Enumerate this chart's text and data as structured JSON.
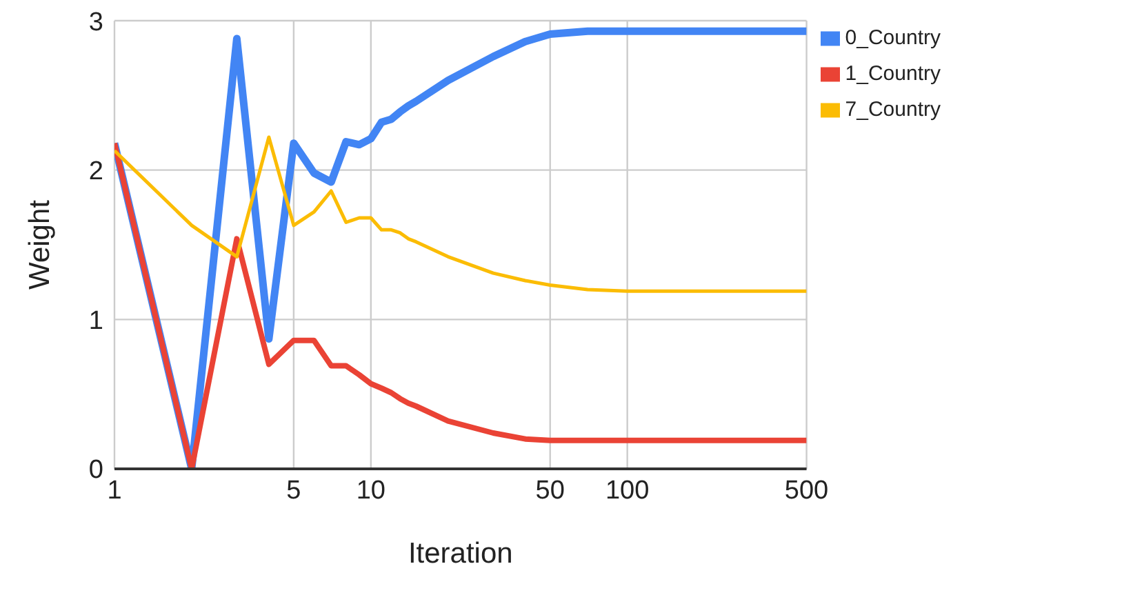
{
  "chart_data": {
    "type": "line",
    "xlabel": "Iteration",
    "ylabel": "Weight",
    "log": "x",
    "x": [
      1,
      2,
      3,
      4,
      5,
      6,
      7,
      8,
      9,
      10,
      11,
      12,
      13,
      14,
      15,
      20,
      30,
      40,
      50,
      70,
      100,
      500
    ],
    "series": [
      {
        "name": "0_Country",
        "color": "#4285f4",
        "values": [
          2.18,
          0,
          2.88,
          0.87,
          2.18,
          1.98,
          1.92,
          2.19,
          2.17,
          2.21,
          2.32,
          2.34,
          2.39,
          2.43,
          2.46,
          2.6,
          2.76,
          2.86,
          2.91,
          2.93,
          2.93,
          2.93
        ]
      },
      {
        "name": "1_Country",
        "color": "#ea4335",
        "values": [
          2.18,
          0,
          1.54,
          0.7,
          0.86,
          0.86,
          0.69,
          0.69,
          0.63,
          0.57,
          0.54,
          0.51,
          0.47,
          0.44,
          0.42,
          0.32,
          0.24,
          0.2,
          0.19,
          0.19,
          0.19,
          0.19
        ]
      },
      {
        "name": "7_Country",
        "color": "#fbbc04",
        "values": [
          2.13,
          1.63,
          1.42,
          2.22,
          1.63,
          1.72,
          1.86,
          1.65,
          1.68,
          1.68,
          1.6,
          1.6,
          1.58,
          1.54,
          1.52,
          1.42,
          1.31,
          1.26,
          1.23,
          1.2,
          1.19,
          1.19
        ]
      }
    ],
    "xlim": [
      1,
      500
    ],
    "xticks": [
      1,
      5,
      10,
      50,
      100,
      500
    ],
    "ylim": [
      0,
      3
    ],
    "yticks": [
      0,
      1,
      2,
      3
    ],
    "grid": true,
    "legend": "top right",
    "marker": "none",
    "line_style": "solid"
  }
}
